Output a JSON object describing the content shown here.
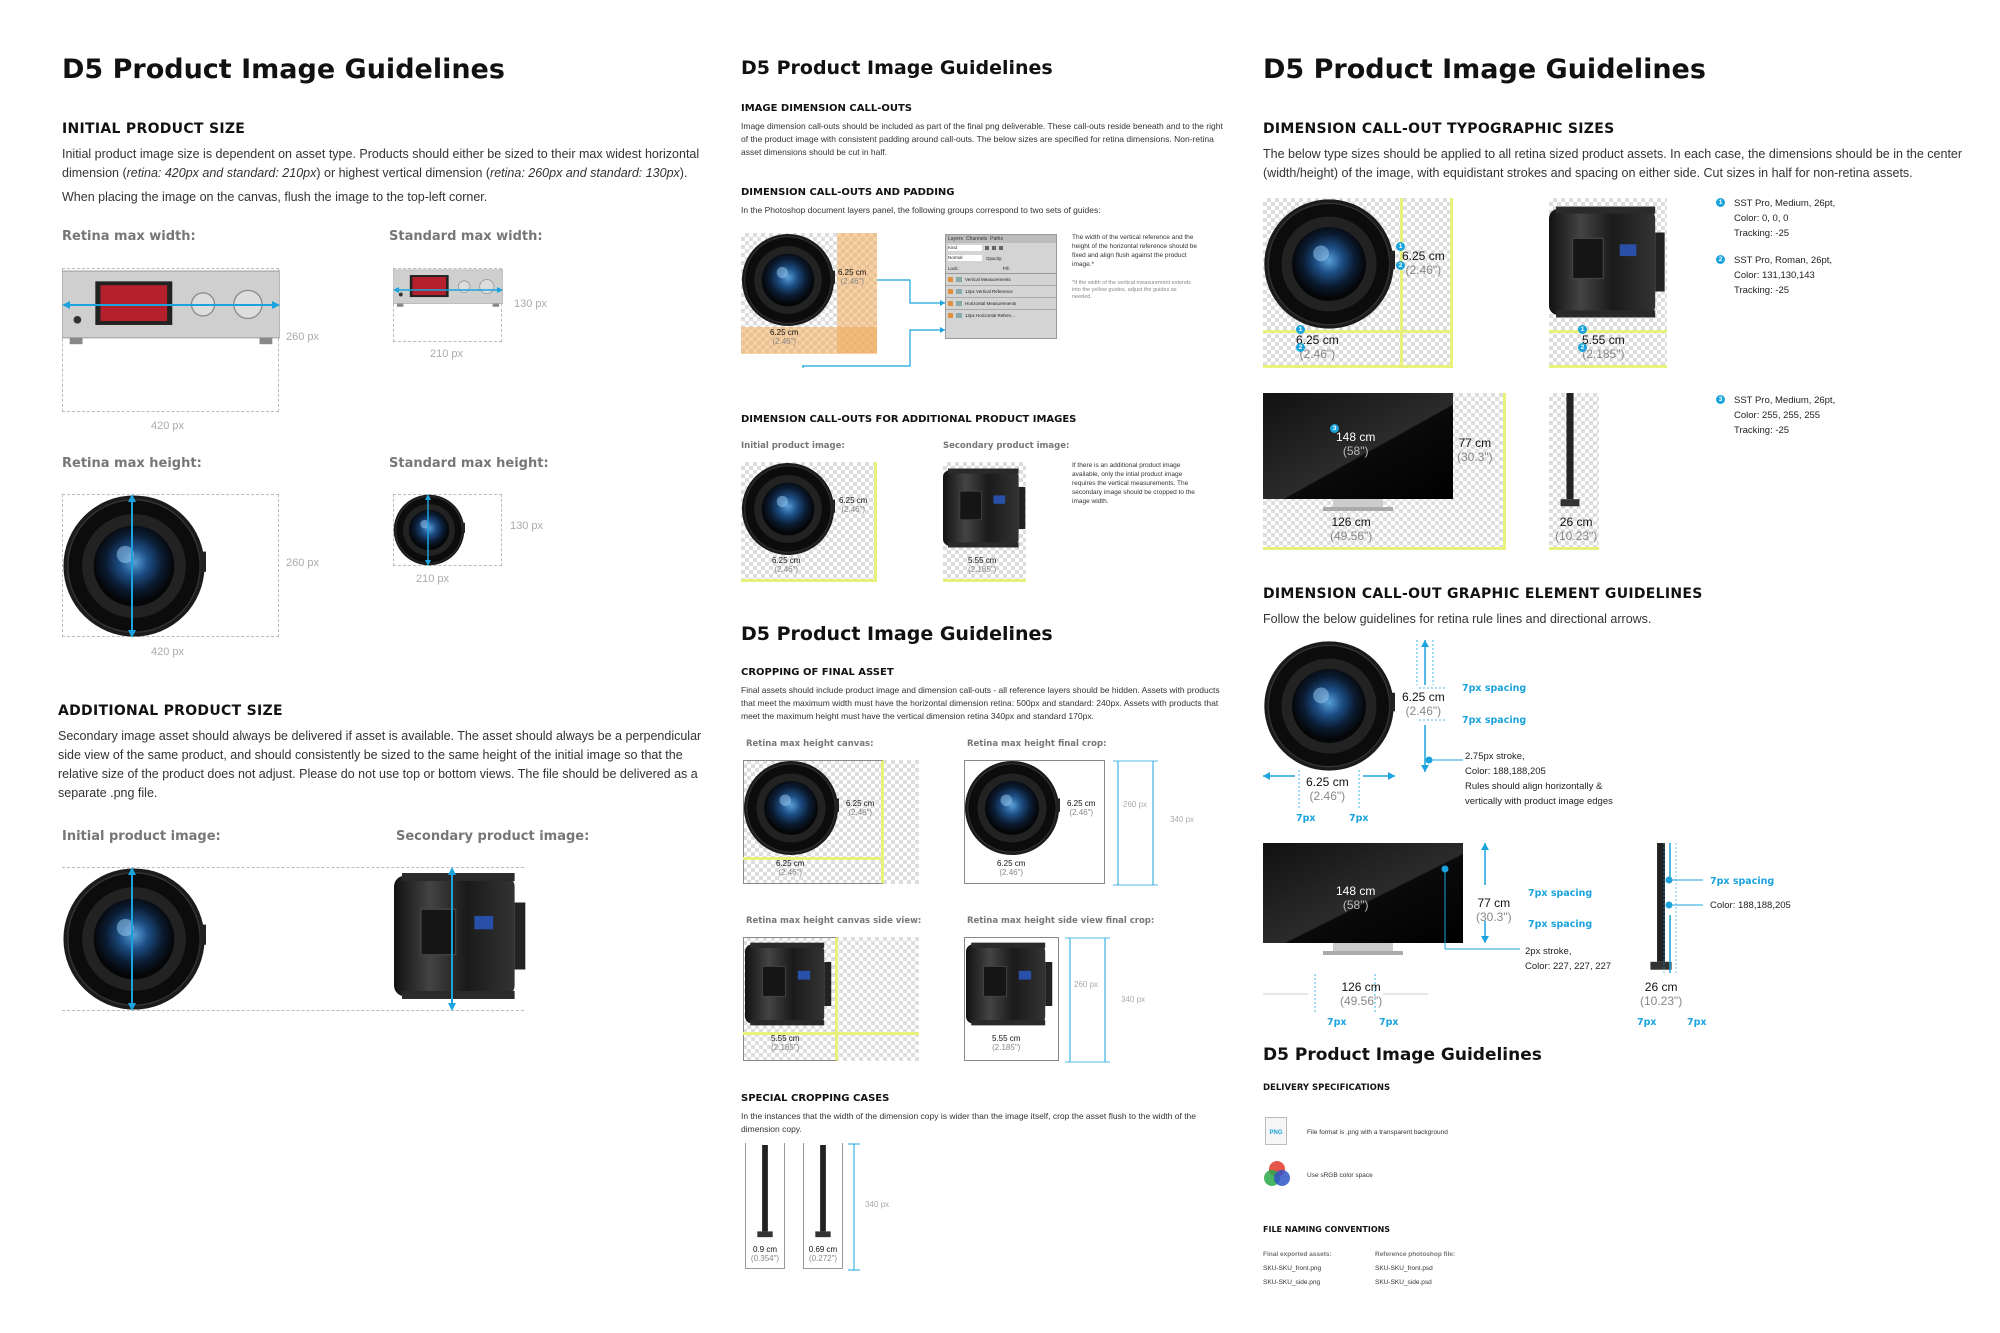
{
  "col1": {
    "title": "D5 Product Image Guidelines",
    "initial": {
      "heading": "INITIAL PRODUCT SIZE",
      "p1_a": "Initial product image size is dependent on asset type. Products should either be sized to their max widest horizontal dimension (",
      "p1_b": "retina: 420px and standard: 210px",
      "p1_c": ") or highest vertical dimension (",
      "p1_d": "retina: 260px and standard: 130px",
      "p1_e": ").",
      "p2": "When placing the image on the canvas, flush the image to the top-left corner.",
      "retina_w": "Retina max width:",
      "standard_w": "Standard max width:",
      "retina_h": "Retina max height:",
      "standard_h": "Standard max height:",
      "d420": "420 px",
      "d260": "260 px",
      "d210": "210 px",
      "d130": "130 px"
    },
    "additional": {
      "heading": "ADDITIONAL PRODUCT SIZE",
      "p": "Secondary image asset should always be delivered if asset is available. The asset should always be a perpendicular side view of the same product, and should consistently be sized to the same height of the initial image so that the relative size of the product does not adjust. Please do not use top or bottom views.  The file should be delivered as a separate .png file.",
      "initial_label": "Initial product image:",
      "secondary_label": "Secondary product image:"
    }
  },
  "col2": {
    "title": "D5 Product Image Guidelines",
    "callouts": {
      "heading": "IMAGE DIMENSION CALL-OUTS",
      "p": "Image dimension call-outs should be included as part of the final png deliverable. These call-outs reside beneath and to the right of the product image with consistent padding around call-outs. The below sizes are specified for retina dimensions. Non-retina asset dimensions should be cut in half."
    },
    "padding": {
      "heading": "DIMENSION CALL-OUTS AND PADDING",
      "p": "In the Photoshop document layers panel, the following groups correspond to two sets of guides:",
      "note": "The width of the vertical reference and the height of the horizontal reference should be fixed and align flush against the product image.*",
      "note2": "*If the width of the vertical measurement extends into the yellow guides, adjust the guides as needed.",
      "tabs": [
        "Layers",
        "Channels",
        "Paths"
      ],
      "kind": "Kind",
      "mode": "Normal",
      "opacity": "Opacity:",
      "lock": "Lock:",
      "fill": "Fill:",
      "layers": [
        "Vertical Measurements",
        "12px Vertical Reference",
        "Horizontal Measurements",
        "12px Horizontal Refere..."
      ],
      "v_cm": "6.25 cm",
      "v_in": "(2.46\")",
      "h_cm": "6.25 cm",
      "h_in": "(2.46\")"
    },
    "additional_callouts": {
      "heading": "DIMENSION CALL-OUTS FOR ADDITIONAL PRODUCT IMAGES",
      "initial_label": "Initial product image:",
      "secondary_label": "Secondary product image:",
      "note": "If there is an additional product image available, only the intial product image requires the vertical measurements. The secondary image should be cropped to the image width.",
      "v_cm": "6.25 cm",
      "v_in": "(2.46\")",
      "h_cm": "6.25 cm",
      "h_in": "(2.46\")",
      "s_cm": "5.55 cm",
      "s_in": "(2.185\")"
    },
    "title2": "D5 Product Image Guidelines",
    "cropping": {
      "heading": "CROPPING OF FINAL ASSET",
      "p": "Final assets should include product image and dimension call-outs - all reference layers should be hidden. Assets with products that meet the maximum width must have the horizontal dimension retina: 500px and standard: 240px. Assets with products that meet the maximum height must have the vertical dimension retina 340px and standard 170px.",
      "l1": "Retina max height canvas:",
      "l2": "Retina max height final crop:",
      "l3": "Retina max height canvas side view:",
      "l4": "Retina max height side view final crop:",
      "cm625": "6.25 cm",
      "in246": "(2.46\")",
      "cm555": "5.55 cm",
      "in2185": "(2.185\")",
      "d260": "260 px",
      "d340": "340 px"
    },
    "special": {
      "heading": "SPECIAL CROPPING CASES",
      "p": "In the instances that the width of the dimension copy is wider than the image itself, crop the asset flush to the width of the dimension copy.",
      "a_cm": "0.9 cm",
      "a_in": "(0.354\")",
      "b_cm": "0.69 cm",
      "b_in": "(0.272\")",
      "d340": "340 px"
    }
  },
  "col3": {
    "title": "D5 Product Image Guidelines",
    "typo": {
      "heading": "DIMENSION CALL-OUT TYPOGRAPHIC SIZES",
      "p": "The below type sizes should be applied to all retina sized product assets.  In each case, the dimensions should be in the center (width/height) of the image, with equidistant strokes and spacing on either side. Cut sizes in half for non-retina assets.",
      "spec1": [
        "SST Pro, Medium, 26pt,",
        "Color: 0, 0, 0",
        "Tracking: -25"
      ],
      "spec2": [
        "SST Pro, Roman, 26pt,",
        "Color: 131,130,143",
        "Tracking: -25"
      ],
      "spec3": [
        "SST Pro, Medium, 26pt,",
        "Color: 255, 255, 255",
        "Tracking: -25"
      ],
      "cam_cm": "6.25 cm",
      "cam_in": "(2.46\")",
      "side_cm": "5.55 cm",
      "side_in": "(2.185\")",
      "tv_w_cm": "148 cm",
      "tv_w_in": "(58\")",
      "tv_h_cm": "77 cm",
      "tv_h_in": "(30.3\")",
      "tv_b_cm": "126 cm",
      "tv_b_in": "(49.56\")",
      "tvs_cm": "26 cm",
      "tvs_in": "(10.23\")"
    },
    "graphic": {
      "heading": "DIMENSION CALL-OUT GRAPHIC ELEMENT GUIDELINES",
      "p": "Follow the below guidelines for retina rule lines and directional arrows.",
      "spacing": "7px spacing",
      "px7": "7px",
      "rule_note": [
        "2.75px stroke,",
        "Color: 188,188,205",
        "Rules should align horizontally &",
        "vertically with product image edges"
      ],
      "stroke2": [
        "2px stroke,",
        "Color: 227, 227, 227"
      ],
      "color188": "Color: 188,188,205"
    },
    "title2": "D5 Product Image Guidelines",
    "delivery": {
      "heading": "DELIVERY SPECIFICATIONS",
      "png_icon": "PNG",
      "format": "File format is .png with a transparent background",
      "color": "Use sRGB color space",
      "naming_heading": "FILE NAMING CONVENTIONS",
      "final_label": "Final exported assets:",
      "ref_label": "Reference photoshop file:",
      "final_files": [
        "SKU-SKU_front.png",
        "SKU-SKU_side.png"
      ],
      "ref_files": [
        "SKU-SKU_front.psd",
        "SKU-SKU_side.psd"
      ]
    }
  }
}
